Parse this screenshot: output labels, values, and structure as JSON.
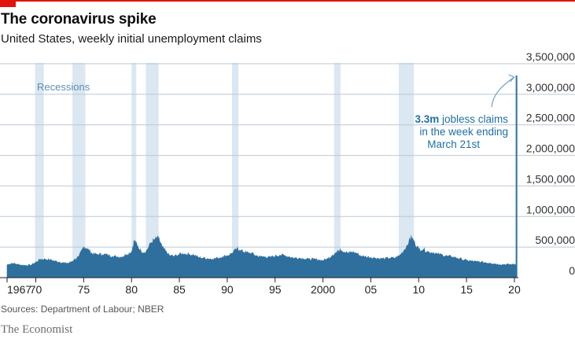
{
  "header": {
    "title": "The coronavirus spike",
    "subtitle": "United States, weekly initial unemployment claims"
  },
  "footer": {
    "source": "Sources: Department of Labour; NBER",
    "brand": "The Economist"
  },
  "colors": {
    "brand_red": "#e3120b",
    "series": "#2e6f9e",
    "recession_band": "#dbe7f1",
    "annotation_text": "#1f6fa5",
    "gridline": "#b9c9d6"
  },
  "chart_data": {
    "type": "area",
    "title": "The coronavirus spike",
    "subtitle": "United States, weekly initial unemployment claims",
    "xlabel": "",
    "ylabel": "",
    "xlim": [
      1967,
      2020.25
    ],
    "ylim": [
      0,
      3500000
    ],
    "y_axis_side": "right",
    "grid": "horizontal",
    "x_ticks": [
      {
        "value": 1967,
        "label": "1967"
      },
      {
        "value": 1970,
        "label": "70"
      },
      {
        "value": 1975,
        "label": "75"
      },
      {
        "value": 1980,
        "label": "80"
      },
      {
        "value": 1985,
        "label": "85"
      },
      {
        "value": 1990,
        "label": "90"
      },
      {
        "value": 1995,
        "label": "95"
      },
      {
        "value": 2000,
        "label": "2000"
      },
      {
        "value": 2005,
        "label": "05"
      },
      {
        "value": 2010,
        "label": "10"
      },
      {
        "value": 2015,
        "label": "15"
      },
      {
        "value": 2020,
        "label": "20"
      }
    ],
    "y_ticks": [
      {
        "value": 0,
        "label": "0"
      },
      {
        "value": 500000,
        "label": "500,000"
      },
      {
        "value": 1000000,
        "label": "1,000,000"
      },
      {
        "value": 1500000,
        "label": "1,500,000"
      },
      {
        "value": 2000000,
        "label": "2,000,000"
      },
      {
        "value": 2500000,
        "label": "2,500,000"
      },
      {
        "value": 3000000,
        "label": "3,000,000"
      },
      {
        "value": 3500000,
        "label": "3,500,000"
      }
    ],
    "recessions_label": "Recessions",
    "recessions": [
      [
        1969.92,
        1970.83
      ],
      [
        1973.83,
        1975.17
      ],
      [
        1980.0,
        1980.5
      ],
      [
        1981.5,
        1982.83
      ],
      [
        1990.5,
        1991.17
      ],
      [
        2001.17,
        2001.83
      ],
      [
        2007.92,
        2009.5
      ]
    ],
    "series": [
      {
        "values": [
          [
            1967.0,
            210000
          ],
          [
            1967.5,
            235000
          ],
          [
            1968.0,
            220000
          ],
          [
            1968.5,
            205000
          ],
          [
            1969.0,
            200000
          ],
          [
            1969.5,
            205000
          ],
          [
            1970.0,
            250000
          ],
          [
            1970.5,
            300000
          ],
          [
            1971.0,
            300000
          ],
          [
            1971.5,
            290000
          ],
          [
            1972.0,
            270000
          ],
          [
            1972.5,
            255000
          ],
          [
            1973.0,
            235000
          ],
          [
            1973.5,
            240000
          ],
          [
            1974.0,
            290000
          ],
          [
            1974.5,
            340000
          ],
          [
            1975.0,
            500000
          ],
          [
            1975.3,
            480000
          ],
          [
            1975.7,
            420000
          ],
          [
            1976.0,
            380000
          ],
          [
            1976.5,
            380000
          ],
          [
            1977.0,
            380000
          ],
          [
            1977.5,
            370000
          ],
          [
            1978.0,
            350000
          ],
          [
            1978.5,
            340000
          ],
          [
            1979.0,
            340000
          ],
          [
            1979.5,
            380000
          ],
          [
            1980.0,
            420000
          ],
          [
            1980.3,
            610000
          ],
          [
            1980.6,
            520000
          ],
          [
            1981.0,
            430000
          ],
          [
            1981.5,
            420000
          ],
          [
            1982.0,
            560000
          ],
          [
            1982.4,
            620000
          ],
          [
            1982.8,
            650000
          ],
          [
            1983.2,
            500000
          ],
          [
            1983.7,
            400000
          ],
          [
            1984.0,
            360000
          ],
          [
            1984.5,
            350000
          ],
          [
            1985.0,
            380000
          ],
          [
            1985.5,
            390000
          ],
          [
            1986.0,
            380000
          ],
          [
            1986.5,
            370000
          ],
          [
            1987.0,
            330000
          ],
          [
            1987.5,
            320000
          ],
          [
            1988.0,
            310000
          ],
          [
            1988.5,
            305000
          ],
          [
            1989.0,
            320000
          ],
          [
            1989.5,
            340000
          ],
          [
            1990.0,
            360000
          ],
          [
            1990.5,
            400000
          ],
          [
            1991.0,
            470000
          ],
          [
            1991.3,
            450000
          ],
          [
            1991.7,
            420000
          ],
          [
            1992.0,
            410000
          ],
          [
            1992.5,
            400000
          ],
          [
            1993.0,
            360000
          ],
          [
            1993.5,
            340000
          ],
          [
            1994.0,
            340000
          ],
          [
            1994.5,
            330000
          ],
          [
            1995.0,
            350000
          ],
          [
            1995.5,
            370000
          ],
          [
            1996.0,
            360000
          ],
          [
            1996.5,
            340000
          ],
          [
            1997.0,
            320000
          ],
          [
            1997.5,
            320000
          ],
          [
            1998.0,
            310000
          ],
          [
            1998.5,
            300000
          ],
          [
            1999.0,
            300000
          ],
          [
            1999.5,
            290000
          ],
          [
            2000.0,
            280000
          ],
          [
            2000.5,
            310000
          ],
          [
            2001.0,
            370000
          ],
          [
            2001.5,
            420000
          ],
          [
            2001.8,
            470000
          ],
          [
            2002.2,
            420000
          ],
          [
            2002.7,
            400000
          ],
          [
            2003.0,
            420000
          ],
          [
            2003.5,
            400000
          ],
          [
            2004.0,
            350000
          ],
          [
            2004.5,
            340000
          ],
          [
            2005.0,
            330000
          ],
          [
            2005.5,
            320000
          ],
          [
            2006.0,
            310000
          ],
          [
            2006.5,
            310000
          ],
          [
            2007.0,
            320000
          ],
          [
            2007.5,
            320000
          ],
          [
            2008.0,
            360000
          ],
          [
            2008.5,
            450000
          ],
          [
            2009.0,
            600000
          ],
          [
            2009.25,
            660000
          ],
          [
            2009.6,
            560000
          ],
          [
            2010.0,
            470000
          ],
          [
            2010.5,
            460000
          ],
          [
            2011.0,
            420000
          ],
          [
            2011.5,
            410000
          ],
          [
            2012.0,
            380000
          ],
          [
            2012.5,
            370000
          ],
          [
            2013.0,
            350000
          ],
          [
            2013.5,
            340000
          ],
          [
            2014.0,
            320000
          ],
          [
            2014.5,
            300000
          ],
          [
            2015.0,
            280000
          ],
          [
            2015.5,
            270000
          ],
          [
            2016.0,
            260000
          ],
          [
            2016.5,
            255000
          ],
          [
            2017.0,
            245000
          ],
          [
            2017.5,
            240000
          ],
          [
            2018.0,
            225000
          ],
          [
            2018.5,
            215000
          ],
          [
            2019.0,
            215000
          ],
          [
            2019.5,
            215000
          ],
          [
            2020.0,
            215000
          ],
          [
            2020.15,
            211000
          ],
          [
            2020.2,
            282000
          ],
          [
            2020.22,
            3307000
          ]
        ]
      }
    ],
    "annotation": {
      "highlight": "3.3m",
      "line1_rest": " jobless claims",
      "line2": "in the week ending",
      "line3": "March 21st",
      "point": [
        2020.22,
        3307000
      ]
    }
  }
}
